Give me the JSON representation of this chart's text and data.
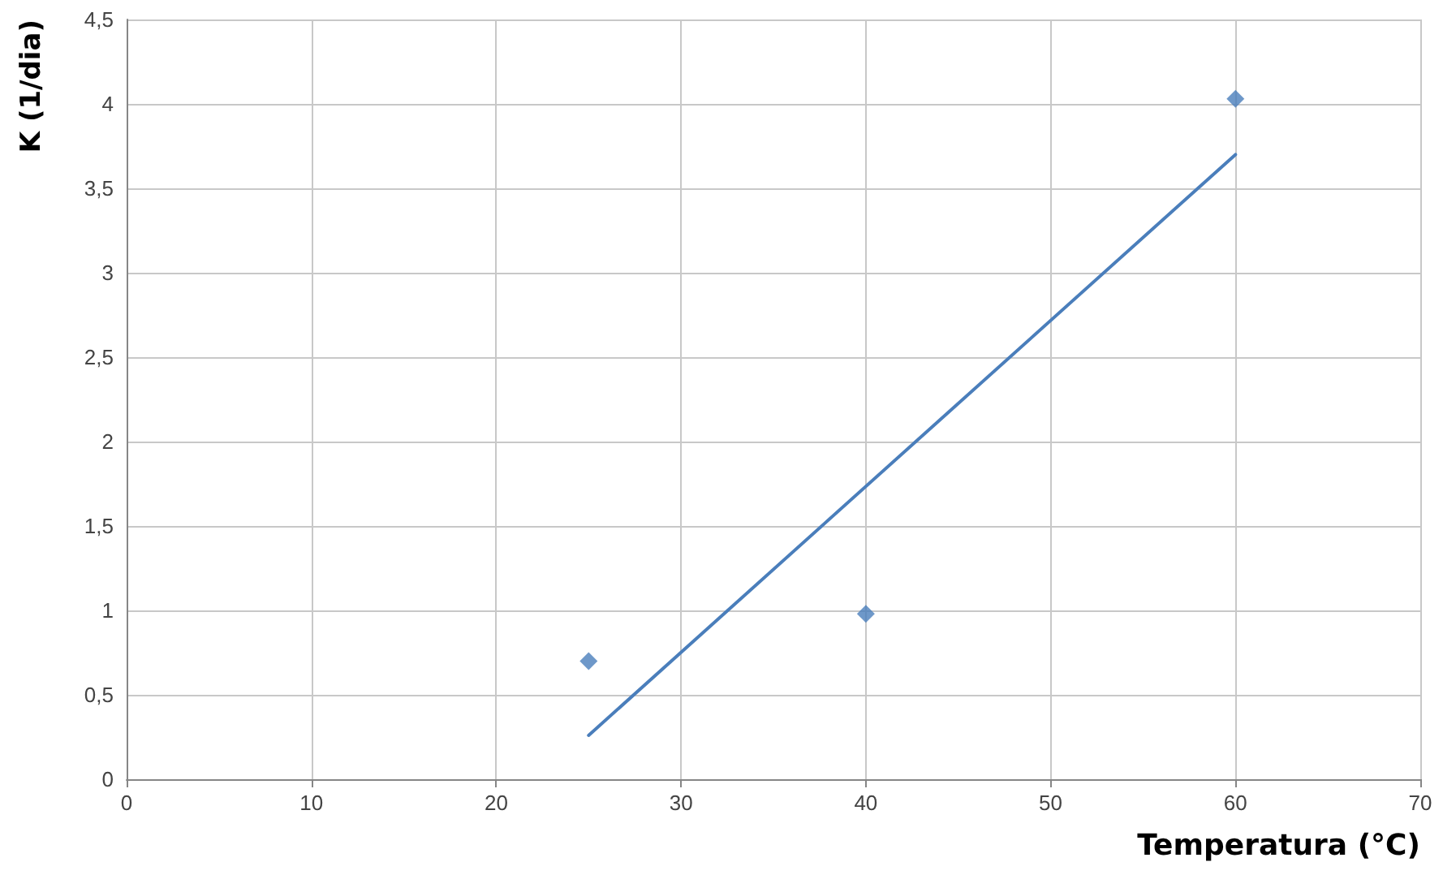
{
  "chart_data": {
    "type": "scatter",
    "xlabel": "Temperatura (°C)",
    "ylabel": "K (1/dia)",
    "series": [
      {
        "color": "#4a7ebb",
        "marker": "diamond",
        "x": [
          25,
          40,
          60
        ],
        "values": [
          0.7,
          0.98,
          4.03
        ]
      },
      {
        "type": "line",
        "color": "#4a7ebb",
        "marker": "none",
        "line_style": "solid",
        "x": [
          25,
          60
        ],
        "values": [
          0.26,
          3.7
        ]
      }
    ],
    "xlim": [
      0,
      70
    ],
    "xticks": [
      0,
      10,
      20,
      30,
      40,
      50,
      60,
      70
    ],
    "ylim": [
      0,
      4.5
    ],
    "yticks": [
      0,
      {
        "value": 0.5,
        "label": "0,5"
      },
      1,
      {
        "value": 1.5,
        "label": "1,5"
      },
      2,
      {
        "value": 2.5,
        "label": "2,5"
      },
      3,
      {
        "value": 3.5,
        "label": "3,5"
      },
      4,
      {
        "value": 4.5,
        "label": "4,5"
      }
    ],
    "grid": true
  }
}
